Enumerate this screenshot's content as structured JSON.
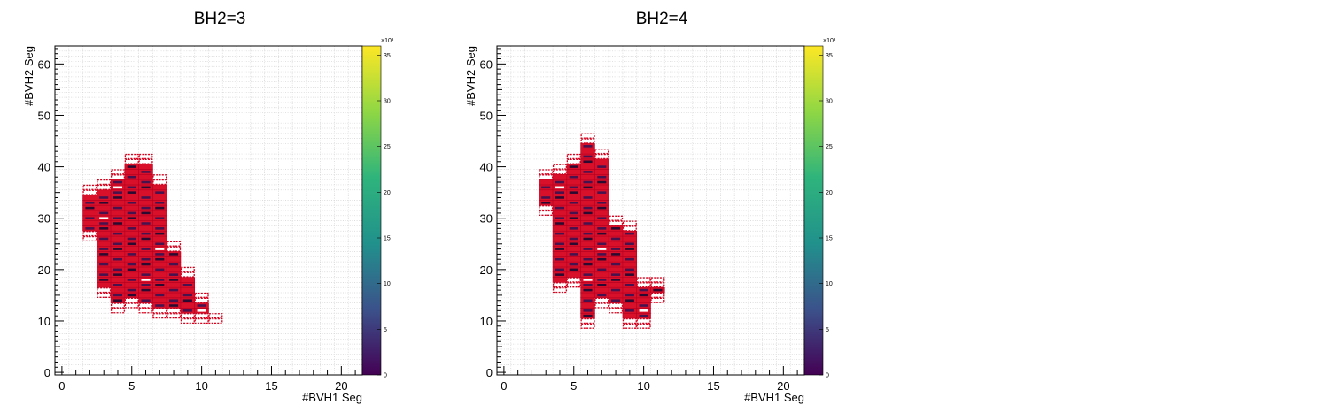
{
  "chart_data": [
    {
      "type": "heatmap",
      "title": "BH2=3",
      "xlabel": "#BVH1 Seg",
      "ylabel": "#BVH2 Seg",
      "xlim": [
        -0.5,
        21.5
      ],
      "ylim": [
        -0.5,
        63.5
      ],
      "x_ticks": [
        "0",
        "5",
        "10",
        "15",
        "20"
      ],
      "y_ticks": [
        "0",
        "10",
        "20",
        "30",
        "40",
        "50",
        "60"
      ],
      "colorbar_ticks": [
        "0",
        "5",
        "10",
        "15",
        "20",
        "25",
        "30",
        "35"
      ],
      "colorbar_exponent": "×10³",
      "zlim": [
        0,
        36
      ],
      "ranges": [
        {
          "x": 2,
          "y": [
            26,
            36
          ]
        },
        {
          "x": 3,
          "y": [
            15,
            37
          ]
        },
        {
          "x": 4,
          "y": [
            12,
            39
          ]
        },
        {
          "x": 5,
          "y": [
            13,
            42
          ]
        },
        {
          "x": 6,
          "y": [
            12,
            42
          ]
        },
        {
          "x": 7,
          "y": [
            11,
            38
          ]
        },
        {
          "x": 8,
          "y": [
            11,
            25
          ]
        },
        {
          "x": 9,
          "y": [
            10,
            20
          ]
        },
        {
          "x": 10,
          "y": [
            10,
            15
          ]
        },
        {
          "x": 11,
          "y": [
            10,
            11
          ]
        }
      ]
    },
    {
      "type": "heatmap",
      "title": "BH2=4",
      "xlabel": "#BVH1 Seg",
      "ylabel": "#BVH2 Seg",
      "xlim": [
        -0.5,
        21.5
      ],
      "ylim": [
        -0.5,
        63.5
      ],
      "x_ticks": [
        "0",
        "5",
        "10",
        "15",
        "20"
      ],
      "y_ticks": [
        "0",
        "10",
        "20",
        "30",
        "40",
        "50",
        "60"
      ],
      "colorbar_ticks": [
        "0",
        "5",
        "10",
        "15",
        "20",
        "25",
        "30",
        "35"
      ],
      "colorbar_exponent": "×10³",
      "zlim": [
        0,
        36
      ],
      "ranges": [
        {
          "x": 3,
          "y": [
            31,
            39
          ]
        },
        {
          "x": 4,
          "y": [
            16,
            40
          ]
        },
        {
          "x": 5,
          "y": [
            17,
            42
          ]
        },
        {
          "x": 6,
          "y": [
            9,
            46
          ]
        },
        {
          "x": 7,
          "y": [
            13,
            43
          ]
        },
        {
          "x": 8,
          "y": [
            12,
            30
          ]
        },
        {
          "x": 9,
          "y": [
            9,
            29
          ]
        },
        {
          "x": 10,
          "y": [
            9,
            18
          ]
        },
        {
          "x": 11,
          "y": [
            14,
            18
          ]
        }
      ]
    }
  ]
}
